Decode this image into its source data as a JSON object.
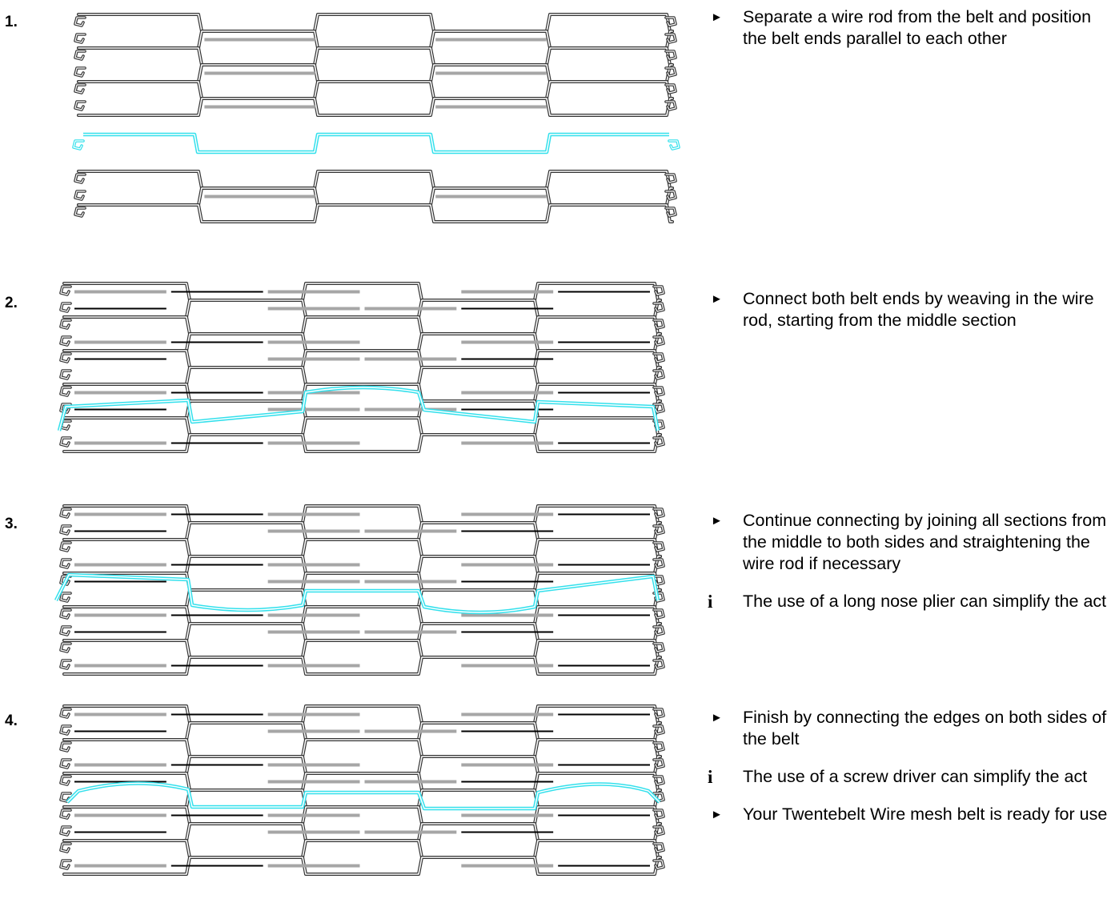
{
  "colors": {
    "wire_outer": "#333333",
    "wire_inner": "#ffffff",
    "wire_dark": "#000000",
    "wire_grey": "#a6a6a6",
    "joining_rod": "#33e0ec"
  },
  "icons": {
    "arrow": "►",
    "info": "i"
  },
  "steps": [
    {
      "number": "1.",
      "instructions": [
        {
          "type": "arrow",
          "icon": "arrow-icon",
          "text": "Separate a wire rod from the belt and position the belt ends parallel to each other"
        }
      ]
    },
    {
      "number": "2.",
      "instructions": [
        {
          "type": "arrow",
          "icon": "arrow-icon",
          "text": "Connect both belt ends by weaving in the wire rod, starting from the middle section"
        }
      ]
    },
    {
      "number": "3.",
      "instructions": [
        {
          "type": "arrow",
          "icon": "arrow-icon",
          "text": "Continue connecting by joining all sections from the middle to both sides and straightening the wire rod if necessary"
        },
        {
          "type": "info",
          "icon": "info-icon",
          "text": "The use of a long nose plier can simplify the act"
        }
      ]
    },
    {
      "number": "4.",
      "instructions": [
        {
          "type": "arrow",
          "icon": "arrow-icon",
          "text": "Finish by connecting the edges on both sides of the belt"
        },
        {
          "type": "info",
          "icon": "info-icon",
          "text": "The use of a screw driver can simplify the act"
        },
        {
          "type": "arrow",
          "icon": "arrow-icon",
          "text": "Your Twentebelt Wire mesh belt is ready for use"
        }
      ]
    }
  ]
}
